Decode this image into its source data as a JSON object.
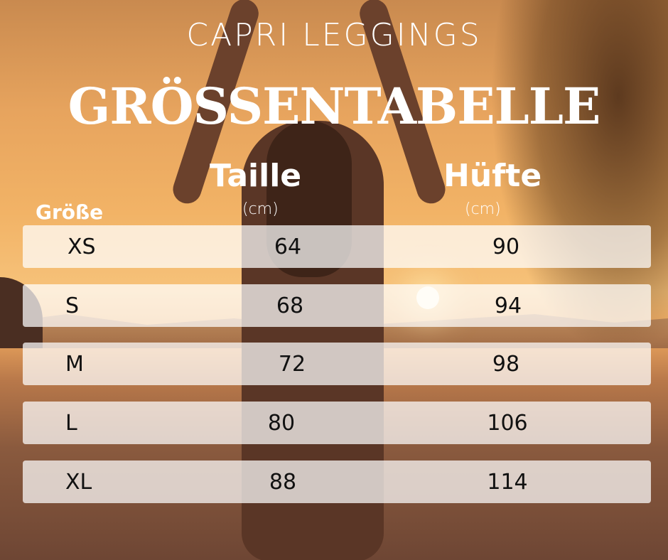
{
  "header": {
    "subtitle": "CAPRI LEGGINGS",
    "title": "GRÖSSENTABELLE"
  },
  "columns": {
    "size": "Größe",
    "waist": "Taille",
    "waist_unit": "(cm)",
    "hip": "Hüfte",
    "hip_unit": "(cm)"
  },
  "rows": [
    {
      "size": "XS",
      "waist": "64",
      "hip": "90"
    },
    {
      "size": "S",
      "waist": "68",
      "hip": "94"
    },
    {
      "size": "M",
      "waist": "72",
      "hip": "98"
    },
    {
      "size": "L",
      "waist": "80",
      "hip": "106"
    },
    {
      "size": "XL",
      "waist": "88",
      "hip": "114"
    }
  ]
}
